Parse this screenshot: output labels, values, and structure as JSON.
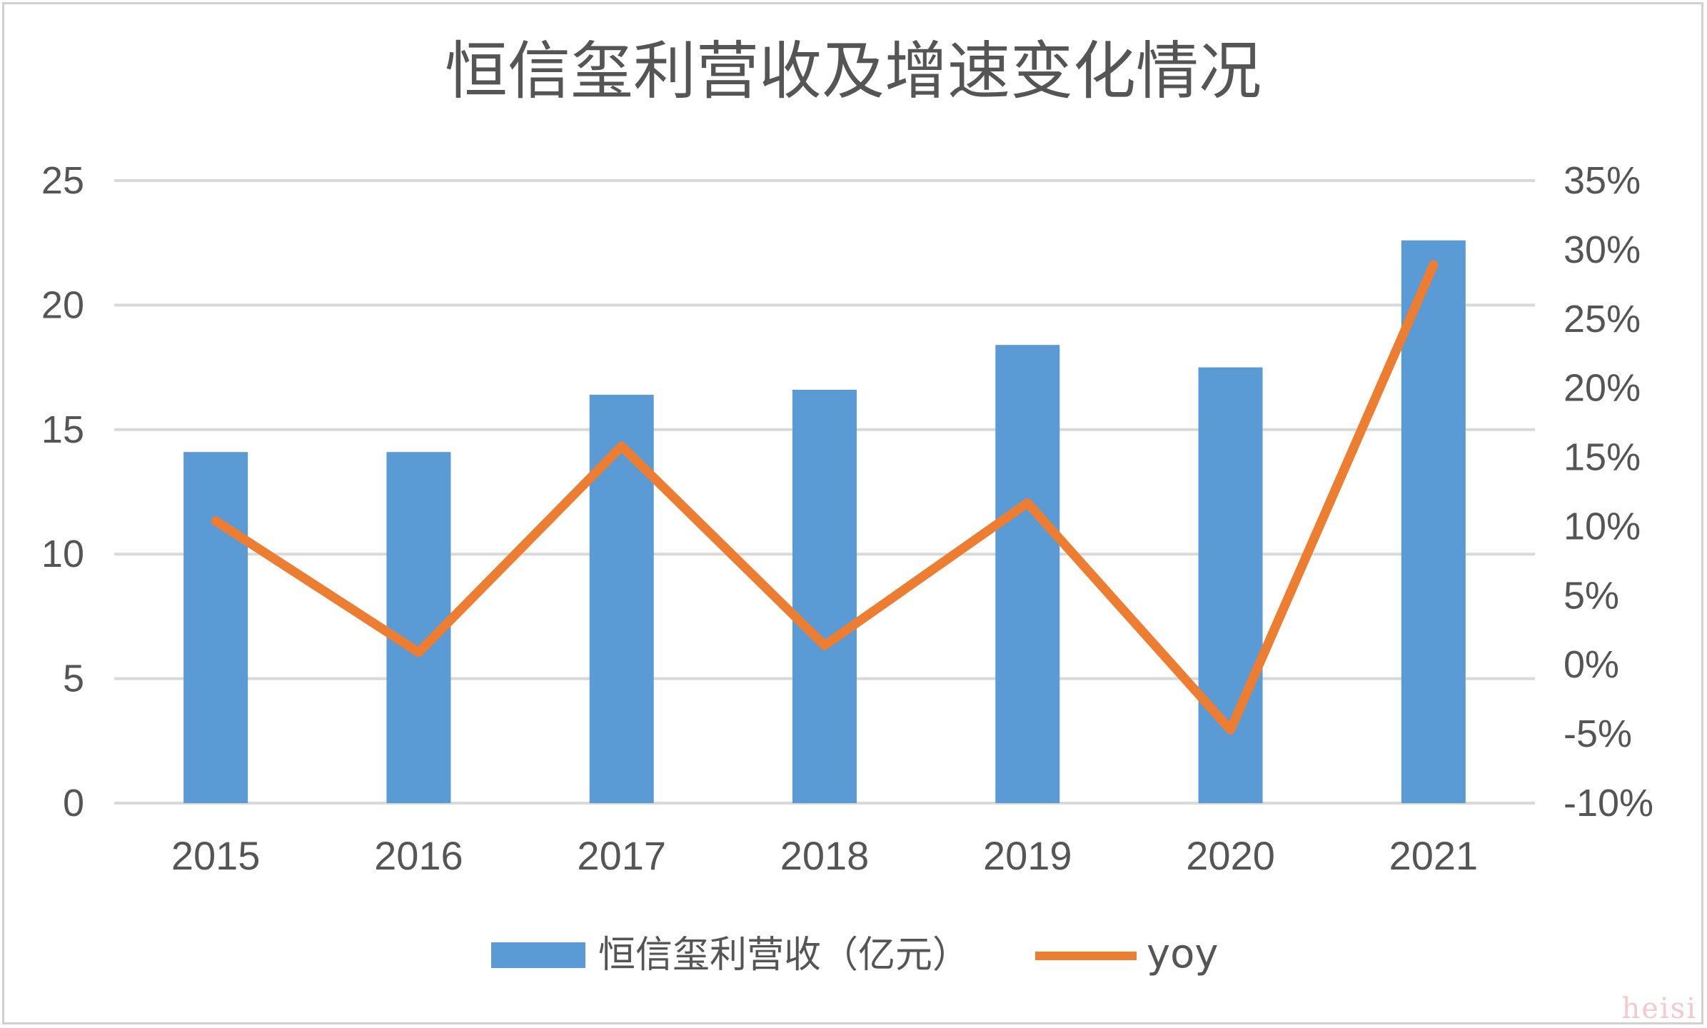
{
  "watermark": "heisi",
  "colors": {
    "bar": "#5b9bd5",
    "line": "#ed7d31",
    "grid": "#d9d9d9",
    "text": "#555555"
  },
  "chart_data": {
    "type": "bar",
    "title": "恒信玺利营收及增速变化情况",
    "categories": [
      "2015",
      "2016",
      "2017",
      "2018",
      "2019",
      "2020",
      "2021"
    ],
    "series": [
      {
        "name": "恒信玺利营收（亿元）",
        "type": "bar",
        "axis": "left",
        "values": [
          14.1,
          14.1,
          16.4,
          16.6,
          18.4,
          17.5,
          22.6
        ]
      },
      {
        "name": "yoy",
        "type": "line",
        "axis": "right",
        "values": [
          0.104,
          0.009,
          0.158,
          0.014,
          0.117,
          -0.047,
          0.289
        ]
      }
    ],
    "y_left": {
      "min": 0,
      "max": 25,
      "ticks": [
        0,
        5,
        10,
        15,
        20,
        25
      ],
      "tick_labels": [
        "0",
        "5",
        "10",
        "15",
        "20",
        "25"
      ]
    },
    "y_right": {
      "min": -0.1,
      "max": 0.35,
      "ticks": [
        -0.1,
        -0.05,
        0.0,
        0.05,
        0.1,
        0.15,
        0.2,
        0.25,
        0.3,
        0.35
      ],
      "tick_labels": [
        "-10%",
        "-5%",
        "0%",
        "5%",
        "10%",
        "15%",
        "20%",
        "25%",
        "30%",
        "35%"
      ]
    },
    "grid": true,
    "legend_position": "bottom"
  }
}
